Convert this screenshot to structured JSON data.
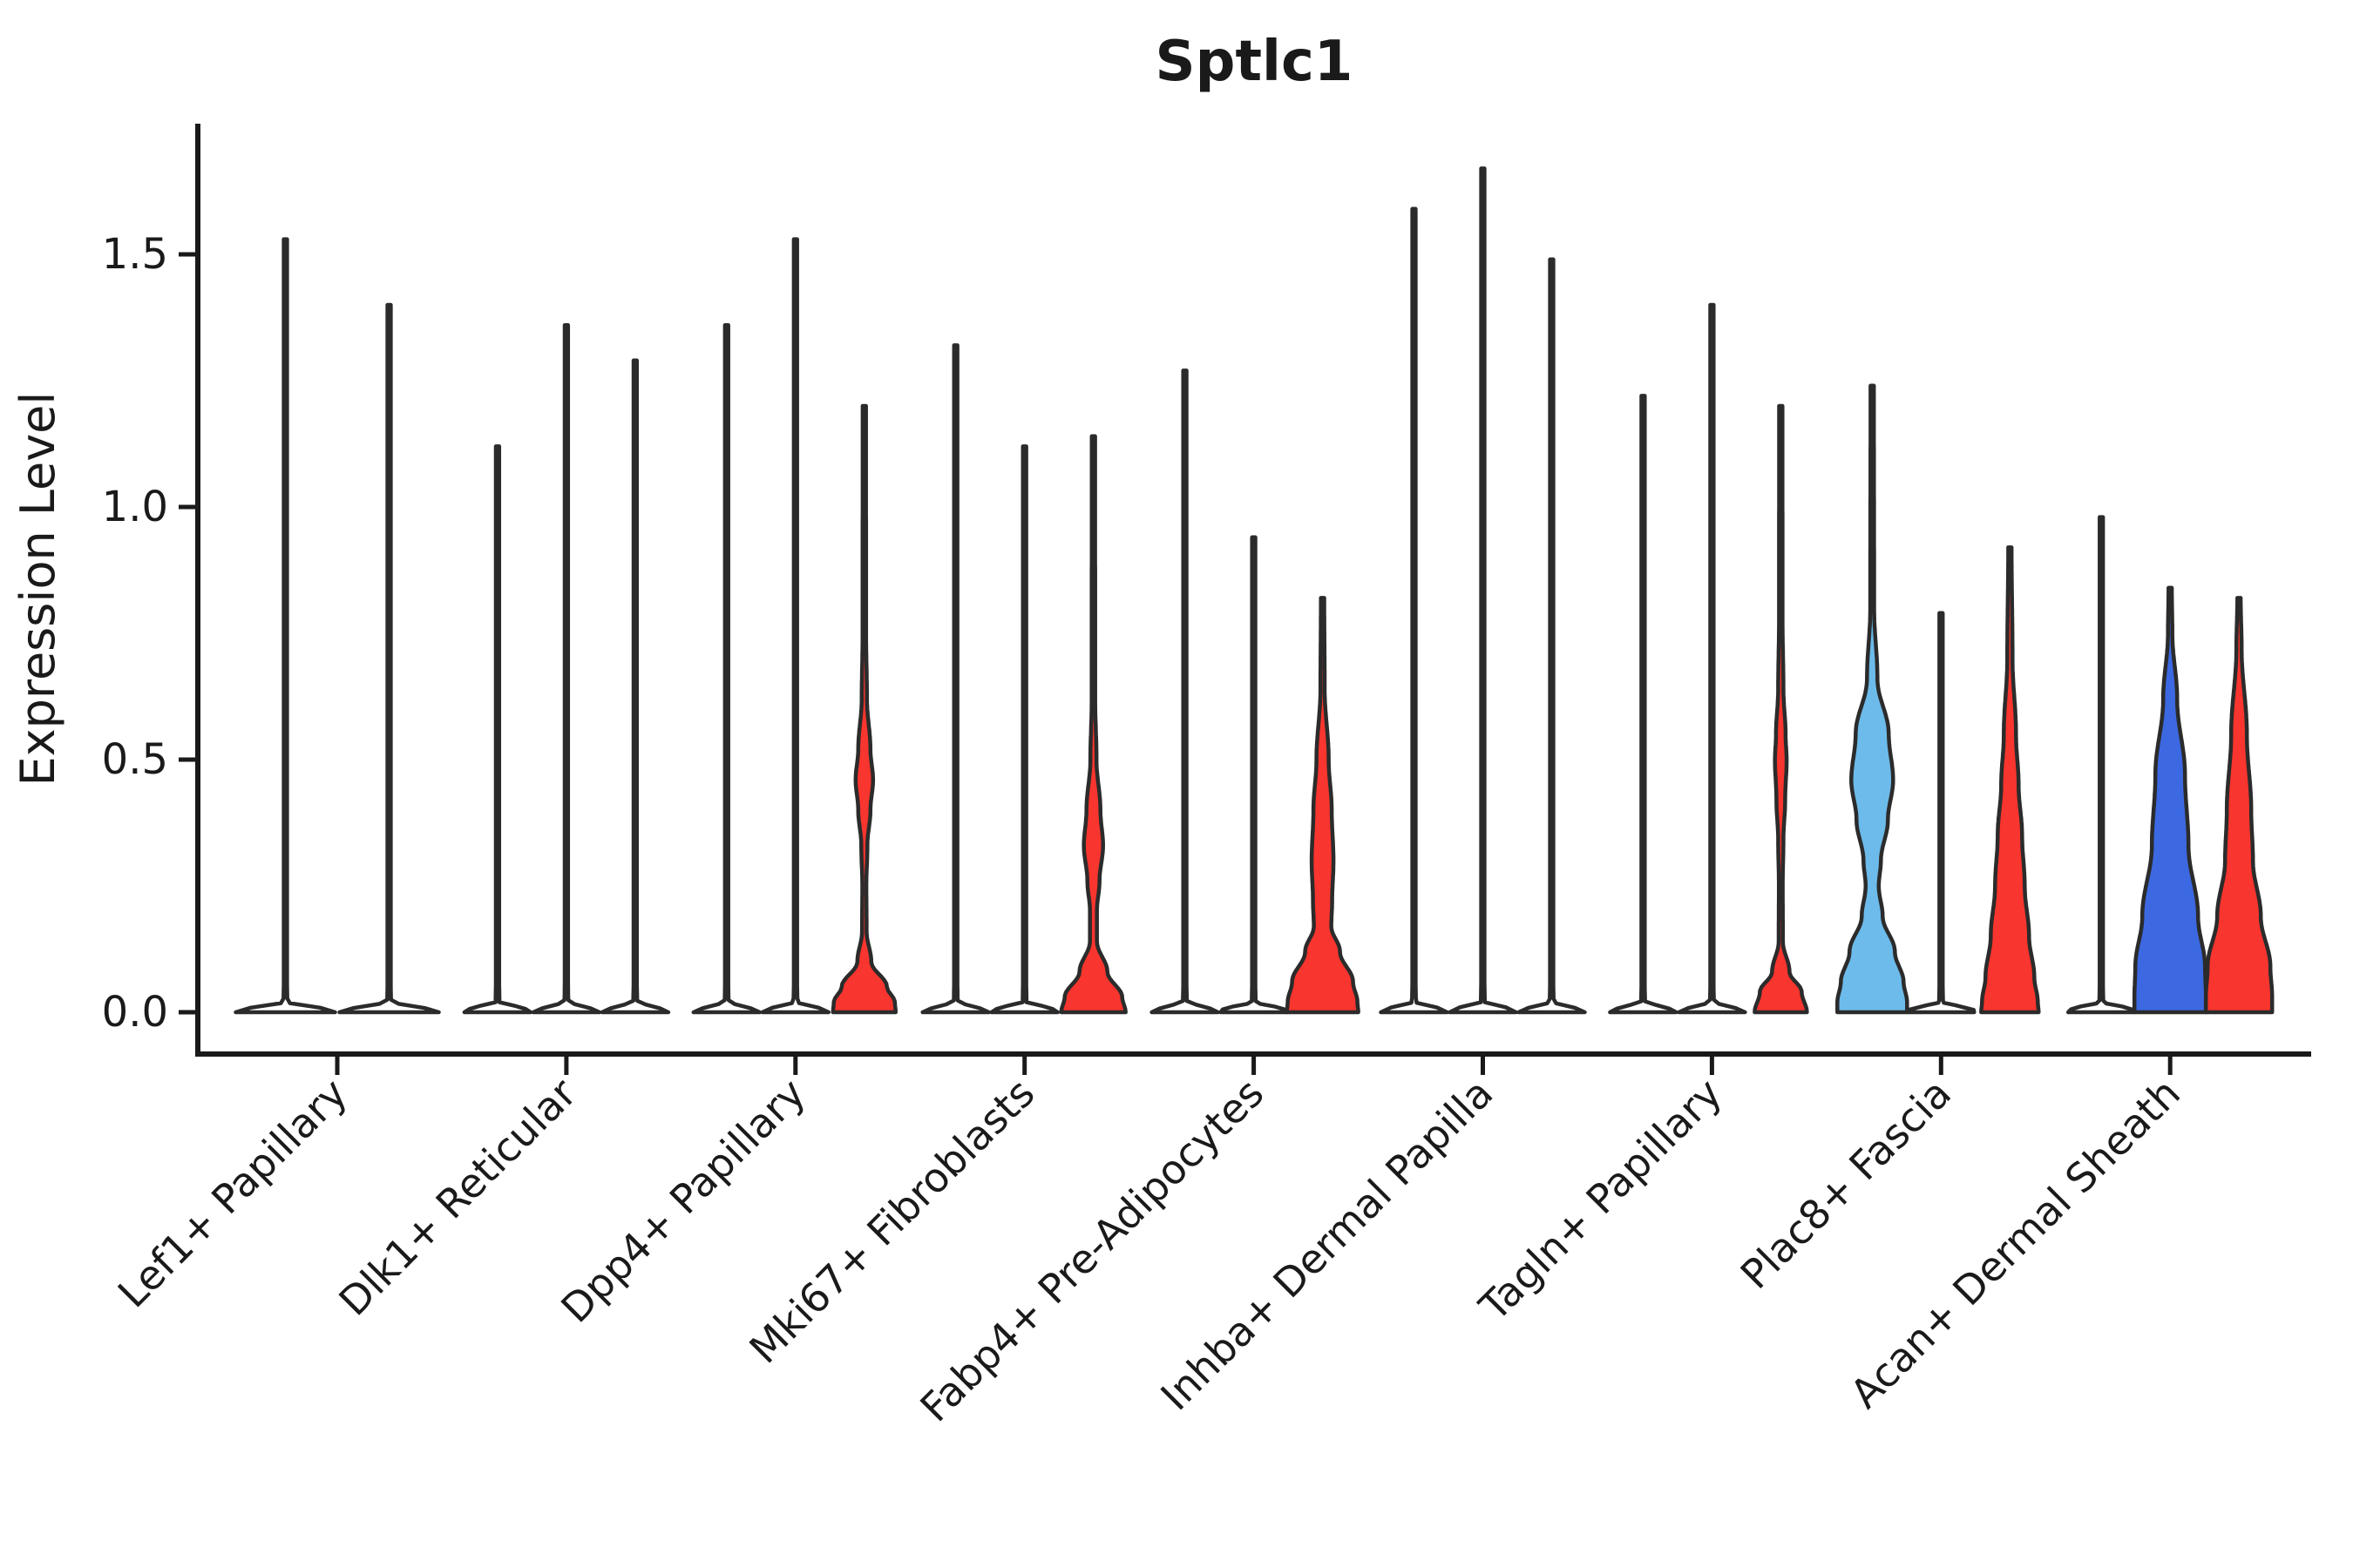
{
  "title": "Sptlc1",
  "axes": {
    "ylabel": "Expression Level",
    "ytick_labels": [
      "0.0",
      "0.5",
      "1.0",
      "1.5"
    ]
  },
  "chart_data": {
    "type": "violin",
    "title": "Sptlc1",
    "xlabel": "",
    "ylabel": "Expression Level",
    "ylim": [
      0,
      1.76
    ],
    "yticks": [
      0.0,
      0.5,
      1.0,
      1.5
    ],
    "grid": false,
    "legend": "none",
    "colors": {
      "red": "#F8352E",
      "light_blue": "#6DBBEA",
      "dark_blue": "#3C69E1",
      "spike_fill": "#FFFFFF",
      "outline": "#2B2B2B",
      "axis": "#1A1A1A"
    },
    "categories": [
      "Lef1+ Papillary",
      "Dlk1+ Reticular",
      "Dpp4+ Papillary",
      "Mki67+ Fibroblasts",
      "Fabp4+ Pre-Adipocytes",
      "Inhba+ Dermal Papilla",
      "Tagln+ Papillary",
      "Plac8+ Fascia",
      "Acan+ Dermal Sheath"
    ],
    "groups": [
      {
        "category": "Lef1+ Papillary",
        "violins": [
          {
            "max": 1.53,
            "style": "spike",
            "color": "#FFFFFF",
            "base_halfwidth": 57
          },
          {
            "max": 1.4,
            "style": "spike",
            "color": "#FFFFFF",
            "base_halfwidth": 57
          }
        ]
      },
      {
        "category": "Dlk1+ Reticular",
        "violins": [
          {
            "max": 1.12,
            "style": "spike",
            "color": "#FFFFFF",
            "base_halfwidth": 38
          },
          {
            "max": 1.36,
            "style": "spike",
            "color": "#FFFFFF",
            "base_halfwidth": 38
          },
          {
            "max": 1.29,
            "style": "spike",
            "color": "#FFFFFF",
            "base_halfwidth": 38
          }
        ]
      },
      {
        "category": "Dpp4+ Papillary",
        "violins": [
          {
            "max": 1.36,
            "style": "spike",
            "color": "#FFFFFF",
            "base_halfwidth": 38
          },
          {
            "max": 1.53,
            "style": "spike",
            "color": "#FFFFFF",
            "base_halfwidth": 38
          },
          {
            "max": 1.2,
            "style": "filled",
            "color": "#F8352E",
            "profile": [
              [
                1.2,
                1.9
              ],
              [
                0.75,
                2.0
              ],
              [
                0.62,
                3
              ],
              [
                0.52,
                7
              ],
              [
                0.46,
                10
              ],
              [
                0.4,
                7
              ],
              [
                0.33,
                3.5
              ],
              [
                0.25,
                2.3
              ],
              [
                0.16,
                2.6
              ],
              [
                0.1,
                8
              ],
              [
                0.05,
                26
              ],
              [
                0.02,
                35
              ],
              [
                0,
                36
              ]
            ]
          }
        ]
      },
      {
        "category": "Mki67+ Fibroblasts",
        "violins": [
          {
            "max": 1.32,
            "style": "spike",
            "color": "#FFFFFF",
            "base_halfwidth": 38
          },
          {
            "max": 1.12,
            "style": "spike",
            "color": "#FFFFFF",
            "base_halfwidth": 38
          },
          {
            "max": 1.14,
            "style": "filled",
            "color": "#F8352E",
            "profile": [
              [
                1.14,
                1.9
              ],
              [
                0.62,
                2.0
              ],
              [
                0.5,
                3.5
              ],
              [
                0.4,
                8
              ],
              [
                0.33,
                11
              ],
              [
                0.26,
                7
              ],
              [
                0.2,
                4
              ],
              [
                0.14,
                4
              ],
              [
                0.08,
                16
              ],
              [
                0.03,
                33
              ],
              [
                0,
                37
              ]
            ]
          }
        ]
      },
      {
        "category": "Fabp4+ Pre-Adipocytes",
        "violins": [
          {
            "max": 1.27,
            "style": "spike",
            "color": "#FFFFFF",
            "base_halfwidth": 38
          },
          {
            "max": 0.94,
            "style": "spike",
            "color": "#FFFFFF",
            "base_halfwidth": 38
          },
          {
            "max": 0.82,
            "style": "filled",
            "color": "#F8352E",
            "profile": [
              [
                0.82,
                1.9
              ],
              [
                0.64,
                2.4
              ],
              [
                0.5,
                7
              ],
              [
                0.4,
                10.5
              ],
              [
                0.3,
                12.5
              ],
              [
                0.22,
                11
              ],
              [
                0.17,
                10
              ],
              [
                0.12,
                20
              ],
              [
                0.06,
                35
              ],
              [
                0.02,
                40
              ],
              [
                0,
                41
              ]
            ]
          }
        ]
      },
      {
        "category": "Inhba+ Dermal Papilla",
        "violins": [
          {
            "max": 1.59,
            "style": "spike",
            "color": "#FFFFFF",
            "base_halfwidth": 38
          },
          {
            "max": 1.67,
            "style": "spike",
            "color": "#FFFFFF",
            "base_halfwidth": 38
          },
          {
            "max": 1.49,
            "style": "spike",
            "color": "#FFFFFF",
            "base_halfwidth": 38
          }
        ]
      },
      {
        "category": "Tagln+ Papillary",
        "violins": [
          {
            "max": 1.22,
            "style": "spike",
            "color": "#FFFFFF",
            "base_halfwidth": 38
          },
          {
            "max": 1.4,
            "style": "spike",
            "color": "#FFFFFF",
            "base_halfwidth": 38
          },
          {
            "max": 1.2,
            "style": "filled",
            "color": "#F8352E",
            "profile": [
              [
                1.2,
                1.9
              ],
              [
                0.78,
                2.0
              ],
              [
                0.64,
                3
              ],
              [
                0.55,
                5.5
              ],
              [
                0.5,
                6.7
              ],
              [
                0.42,
                5
              ],
              [
                0.34,
                3
              ],
              [
                0.25,
                2.2
              ],
              [
                0.14,
                2.4
              ],
              [
                0.08,
                10
              ],
              [
                0.04,
                24
              ],
              [
                0,
                30
              ]
            ]
          }
        ]
      },
      {
        "category": "Plac8+ Fascia",
        "violins": [
          {
            "max": 1.24,
            "style": "filled",
            "color": "#6DBBEA",
            "profile": [
              [
                1.24,
                1.9
              ],
              [
                0.8,
                2.2
              ],
              [
                0.66,
                6
              ],
              [
                0.55,
                19
              ],
              [
                0.46,
                24
              ],
              [
                0.38,
                18
              ],
              [
                0.3,
                10
              ],
              [
                0.25,
                7.5
              ],
              [
                0.19,
                12
              ],
              [
                0.12,
                26
              ],
              [
                0.06,
                36
              ],
              [
                0.02,
                40
              ],
              [
                0,
                40
              ]
            ]
          },
          {
            "max": 0.79,
            "style": "spike",
            "color": "#FFFFFF",
            "base_halfwidth": 38
          },
          {
            "max": 0.92,
            "style": "filled",
            "color": "#F8352E",
            "profile": [
              [
                0.92,
                1.9
              ],
              [
                0.7,
                3
              ],
              [
                0.55,
                7
              ],
              [
                0.45,
                10
              ],
              [
                0.35,
                14
              ],
              [
                0.25,
                17
              ],
              [
                0.15,
                22
              ],
              [
                0.07,
                28
              ],
              [
                0.02,
                32
              ],
              [
                0,
                33
              ]
            ]
          }
        ]
      },
      {
        "category": "Acan+ Dermal Sheath",
        "violins": [
          {
            "max": 0.98,
            "style": "spike",
            "color": "#FFFFFF",
            "base_halfwidth": 38
          },
          {
            "max": 0.84,
            "style": "filled",
            "color": "#3C69E1",
            "profile": [
              [
                0.84,
                1.9
              ],
              [
                0.75,
                2.5
              ],
              [
                0.62,
                8
              ],
              [
                0.47,
                17
              ],
              [
                0.33,
                21
              ],
              [
                0.19,
                32
              ],
              [
                0.09,
                40
              ],
              [
                0.03,
                41
              ],
              [
                0,
                41
              ]
            ]
          },
          {
            "max": 0.82,
            "style": "filled",
            "color": "#F8352E",
            "profile": [
              [
                0.82,
                1.9
              ],
              [
                0.72,
                3
              ],
              [
                0.55,
                9
              ],
              [
                0.4,
                14
              ],
              [
                0.3,
                16
              ],
              [
                0.19,
                25
              ],
              [
                0.09,
                36
              ],
              [
                0.03,
                38
              ],
              [
                0,
                38
              ]
            ]
          }
        ]
      }
    ]
  }
}
